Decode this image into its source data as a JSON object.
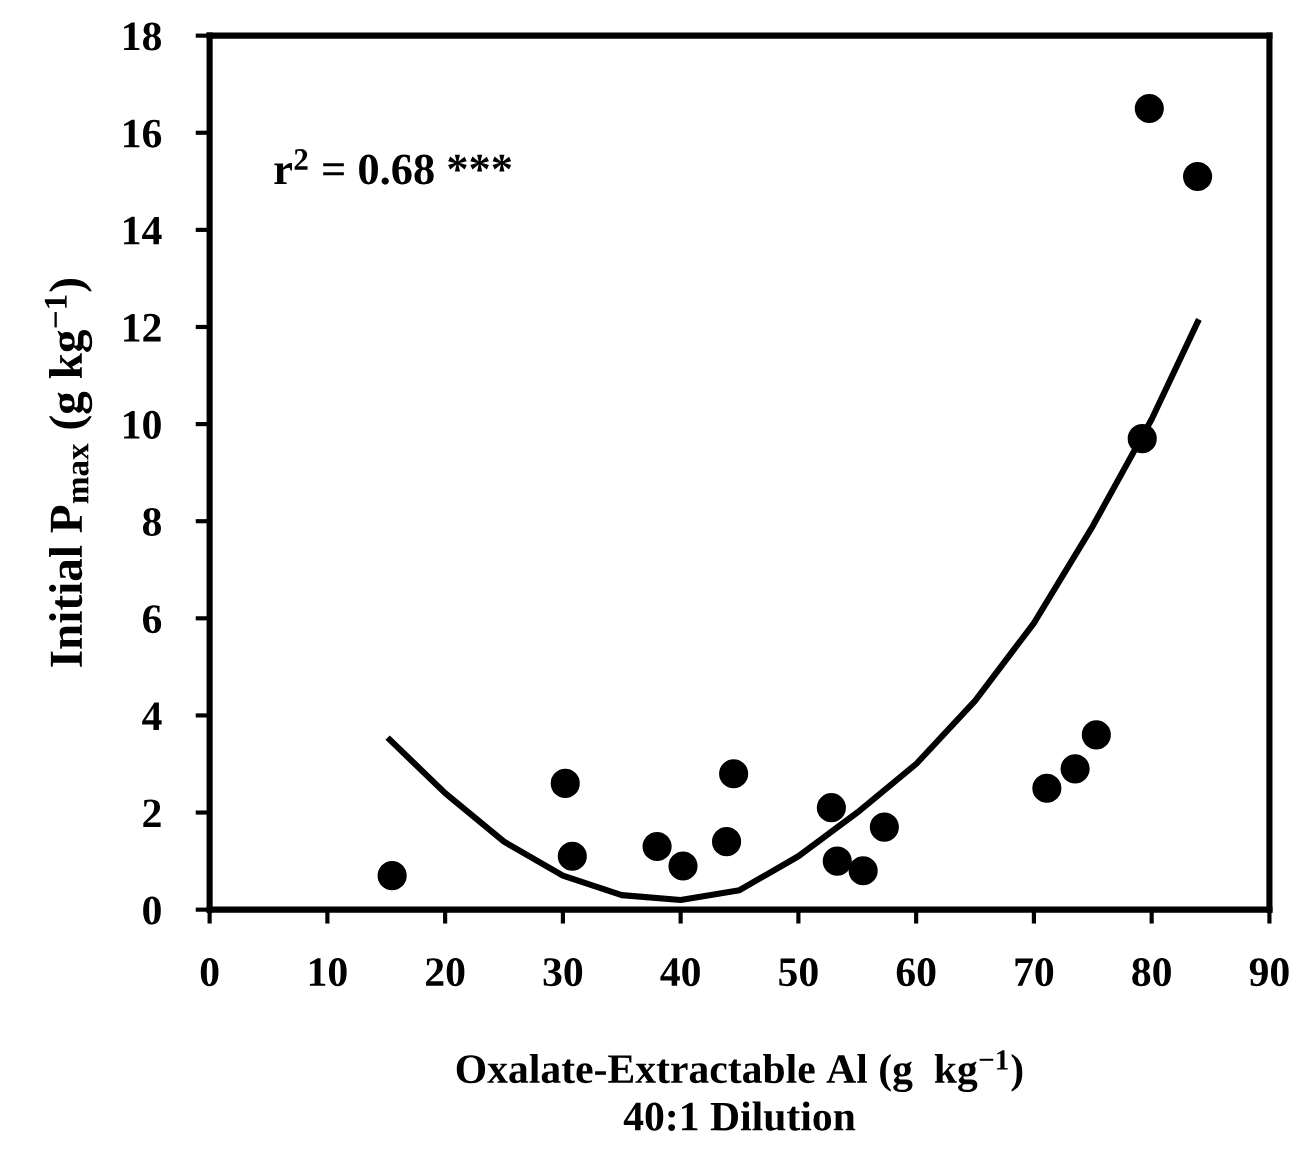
{
  "chart_data": {
    "type": "scatter",
    "xlabel": "Oxalate-Extractable Al (g  kg$^{−1}$)\n40:1 Dilution",
    "ylabel": "Initial P$_{max}$ (g kg$^{−1}$)",
    "annotations": [
      "r$^{2}$ = 0.68 ***"
    ],
    "xlim": [
      0,
      90
    ],
    "xticks": [
      0,
      10,
      20,
      30,
      40,
      50,
      60,
      70,
      80,
      90
    ],
    "ylim": [
      0,
      18
    ],
    "yticks": [
      0,
      2,
      4,
      6,
      8,
      10,
      12,
      14,
      16,
      18
    ],
    "grid": false,
    "legend": false,
    "series": [
      {
        "color": "#000000",
        "marker": "circle",
        "x": [
          15.5,
          30.2,
          30.8,
          38.0,
          40.2,
          43.9,
          44.5,
          52.8,
          53.3,
          55.5,
          57.3,
          71.1,
          73.5,
          75.3,
          79.2,
          79.8,
          83.9
        ],
        "values": [
          0.7,
          2.6,
          1.1,
          1.3,
          0.9,
          1.4,
          2.8,
          2.1,
          1.0,
          0.8,
          1.7,
          2.5,
          2.9,
          3.6,
          9.7,
          16.5,
          15.1
        ]
      },
      {
        "type": "line",
        "color": "#000000",
        "marker": "none",
        "line_style": "solid",
        "x": [
          15.3,
          20,
          25,
          30,
          35,
          40,
          45,
          50,
          55,
          60,
          65,
          70,
          75,
          80,
          83.9
        ],
        "values": [
          3.5,
          2.4,
          1.4,
          0.7,
          0.3,
          0.2,
          0.4,
          1.1,
          2.0,
          3.0,
          4.3,
          5.9,
          7.9,
          10.1,
          12.1
        ]
      }
    ]
  }
}
